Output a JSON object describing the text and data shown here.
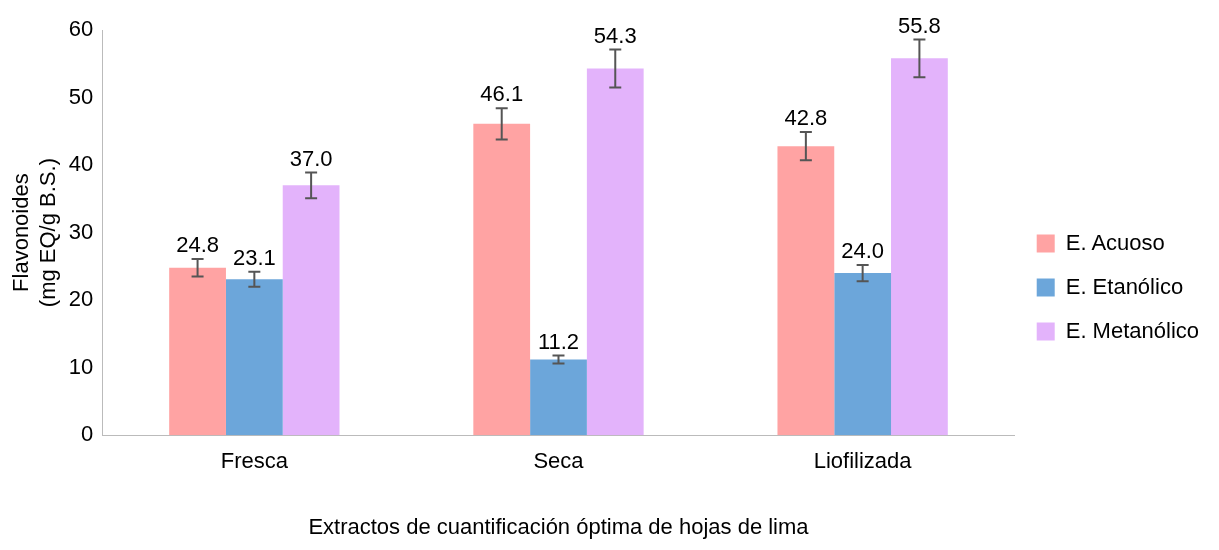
{
  "chart_data": {
    "type": "bar",
    "xlabel": "Extractos de cuantificación óptima de hojas de lima",
    "ylabel": "Flavonoides\n(mg EQ/g B.S.)",
    "categories": [
      "Fresca",
      "Seca",
      "Liofilizada"
    ],
    "series": [
      {
        "name": "E. Acuoso",
        "color": "#ffa3a3",
        "values": [
          24.8,
          46.1,
          42.8
        ],
        "errors": [
          1.3,
          2.3,
          2.1
        ],
        "value_labels": [
          "24.8",
          "46.1",
          "42.8"
        ]
      },
      {
        "name": "E. Etanólico",
        "color": "#6ca6da",
        "values": [
          23.1,
          11.2,
          24.0
        ],
        "errors": [
          1.1,
          0.6,
          1.2
        ],
        "value_labels": [
          "23.1",
          "11.2",
          "24.0"
        ]
      },
      {
        "name": "E. Metanólico",
        "color": "#e3b3fb",
        "values": [
          37.0,
          54.3,
          55.8
        ],
        "errors": [
          1.9,
          2.8,
          2.8
        ],
        "value_labels": [
          "37.0",
          "54.3",
          "55.8"
        ]
      }
    ],
    "ylim": [
      0,
      60
    ],
    "yticks": [
      0,
      10,
      20,
      30,
      40,
      50,
      60
    ],
    "grid": false,
    "legend": "right"
  }
}
